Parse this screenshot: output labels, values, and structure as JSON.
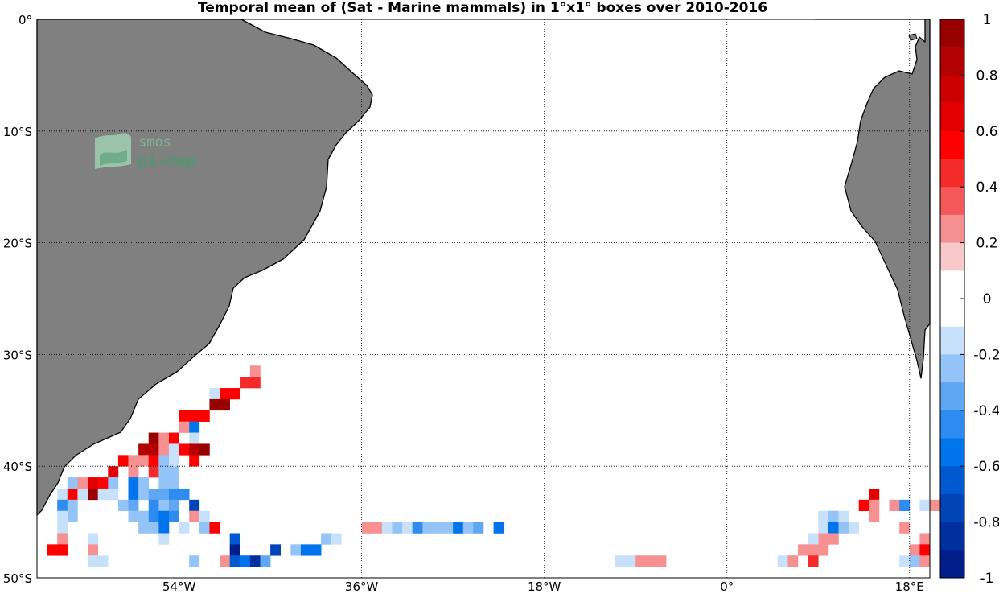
{
  "chart_data": {
    "type": "heatmap",
    "title": "Temporal mean of (Sat - Marine mammals) in 1°x1° boxes over 2010-2016",
    "x_range_deg": [
      -68,
      20
    ],
    "y_range_deg": [
      -50,
      0
    ],
    "x_ticks": [
      {
        "value": -54,
        "label": "54°W"
      },
      {
        "value": -36,
        "label": "36°W"
      },
      {
        "value": -18,
        "label": "18°W"
      },
      {
        "value": 0,
        "label": "0°"
      },
      {
        "value": 18,
        "label": "18°E"
      }
    ],
    "y_ticks": [
      {
        "value": 0,
        "label": "0°"
      },
      {
        "value": -10,
        "label": "10°S"
      },
      {
        "value": -20,
        "label": "20°S"
      },
      {
        "value": -30,
        "label": "30°S"
      },
      {
        "value": -40,
        "label": "40°S"
      },
      {
        "value": -50,
        "label": "50°S"
      }
    ],
    "grid": "dotted",
    "colorbar": {
      "range": [
        -1,
        1
      ],
      "step": 0.1,
      "ticks": [
        "1",
        "0.8",
        "0.6",
        "0.4",
        "0.2",
        "0",
        "-0.2",
        "-0.4",
        "-0.6",
        "-0.8",
        "-1"
      ],
      "zero_band": 0.1
    },
    "cells": [
      {
        "lon": -47,
        "lat": -32,
        "v": 0.3
      },
      {
        "lon": -48,
        "lat": -33,
        "v": 0.4
      },
      {
        "lon": -47,
        "lat": -33,
        "v": 0.4
      },
      {
        "lon": -51,
        "lat": -34,
        "v": -0.15
      },
      {
        "lon": -50,
        "lat": -34,
        "v": 0.6
      },
      {
        "lon": -49,
        "lat": -34,
        "v": 0.6
      },
      {
        "lon": -51,
        "lat": -35,
        "v": 0.95
      },
      {
        "lon": -50,
        "lat": -35,
        "v": 0.95
      },
      {
        "lon": -54,
        "lat": -36,
        "v": 0.6
      },
      {
        "lon": -53,
        "lat": -36,
        "v": 0.6
      },
      {
        "lon": -52,
        "lat": -36,
        "v": 0.6
      },
      {
        "lon": -54,
        "lat": -37,
        "v": 0.3
      },
      {
        "lon": -53,
        "lat": -37,
        "v": -0.6
      },
      {
        "lon": -57,
        "lat": -38,
        "v": 0.95
      },
      {
        "lon": -56,
        "lat": -38,
        "v": 0.3
      },
      {
        "lon": -55,
        "lat": -38,
        "v": 0.5
      },
      {
        "lon": -53,
        "lat": -38,
        "v": -0.15
      },
      {
        "lon": -58,
        "lat": -39,
        "v": 0.8
      },
      {
        "lon": -57,
        "lat": -39,
        "v": 0.85
      },
      {
        "lon": -56,
        "lat": -39,
        "v": 0.3
      },
      {
        "lon": -55,
        "lat": -39,
        "v": -0.15
      },
      {
        "lon": -54,
        "lat": -39,
        "v": 0.5
      },
      {
        "lon": -53,
        "lat": -39,
        "v": 0.85
      },
      {
        "lon": -52,
        "lat": -39,
        "v": 0.95
      },
      {
        "lon": -60,
        "lat": -40,
        "v": 0.55
      },
      {
        "lon": -59,
        "lat": -40,
        "v": 0.3
      },
      {
        "lon": -58,
        "lat": -40,
        "v": 0.3
      },
      {
        "lon": -57,
        "lat": -40,
        "v": 0.5
      },
      {
        "lon": -56,
        "lat": -40,
        "v": -0.25
      },
      {
        "lon": -55,
        "lat": -40,
        "v": -0.15
      },
      {
        "lon": -53,
        "lat": -40,
        "v": 0.6
      },
      {
        "lon": -61,
        "lat": -41,
        "v": 0.7
      },
      {
        "lon": -59,
        "lat": -41,
        "v": 0.3
      },
      {
        "lon": -57,
        "lat": -41,
        "v": 0.4
      },
      {
        "lon": -56,
        "lat": -41,
        "v": -0.25
      },
      {
        "lon": -55,
        "lat": -41,
        "v": -0.25
      },
      {
        "lon": -65,
        "lat": -42,
        "v": -0.25
      },
      {
        "lon": -64,
        "lat": -42,
        "v": 0.2
      },
      {
        "lon": -63,
        "lat": -42,
        "v": 0.7
      },
      {
        "lon": -62,
        "lat": -42,
        "v": 0.6
      },
      {
        "lon": -61,
        "lat": -42,
        "v": -0.25
      },
      {
        "lon": -59,
        "lat": -42,
        "v": -0.6
      },
      {
        "lon": -58,
        "lat": -42,
        "v": -0.25
      },
      {
        "lon": -56,
        "lat": -42,
        "v": -0.25
      },
      {
        "lon": -55,
        "lat": -42,
        "v": -0.25
      },
      {
        "lon": -66,
        "lat": -43,
        "v": -0.15
      },
      {
        "lon": -65,
        "lat": -43,
        "v": 0.5
      },
      {
        "lon": -64,
        "lat": -43,
        "v": -0.15
      },
      {
        "lon": -63,
        "lat": -43,
        "v": 0.9
      },
      {
        "lon": -62,
        "lat": -43,
        "v": -0.15
      },
      {
        "lon": -61,
        "lat": -43,
        "v": -0.15
      },
      {
        "lon": -59,
        "lat": -43,
        "v": -0.5
      },
      {
        "lon": -58,
        "lat": -43,
        "v": -0.25
      },
      {
        "lon": -57,
        "lat": -43,
        "v": -0.35
      },
      {
        "lon": -56,
        "lat": -43,
        "v": -0.35
      },
      {
        "lon": -55,
        "lat": -43,
        "v": -0.45
      },
      {
        "lon": -54,
        "lat": -43,
        "v": -0.45
      },
      {
        "lon": -66,
        "lat": -44,
        "v": -0.45
      },
      {
        "lon": -65,
        "lat": -44,
        "v": -0.25
      },
      {
        "lon": -60,
        "lat": -44,
        "v": -0.25
      },
      {
        "lon": -59,
        "lat": -44,
        "v": -0.35
      },
      {
        "lon": -57,
        "lat": -44,
        "v": -0.45
      },
      {
        "lon": -56,
        "lat": -44,
        "v": -0.25
      },
      {
        "lon": -55,
        "lat": -44,
        "v": -0.35
      },
      {
        "lon": -53,
        "lat": -44,
        "v": -0.75
      },
      {
        "lon": -66,
        "lat": -45,
        "v": -0.15
      },
      {
        "lon": -65,
        "lat": -45,
        "v": -0.25
      },
      {
        "lon": -59,
        "lat": -45,
        "v": -0.25
      },
      {
        "lon": -58,
        "lat": -45,
        "v": -0.25
      },
      {
        "lon": -57,
        "lat": -45,
        "v": -0.45
      },
      {
        "lon": -56,
        "lat": -45,
        "v": -0.55
      },
      {
        "lon": -55,
        "lat": -45,
        "v": -0.45
      },
      {
        "lon": -53,
        "lat": -45,
        "v": 0.3
      },
      {
        "lon": -52,
        "lat": -45,
        "v": -0.15
      },
      {
        "lon": -66,
        "lat": -46,
        "v": -0.15
      },
      {
        "lon": -58,
        "lat": -46,
        "v": -0.25
      },
      {
        "lon": -57,
        "lat": -46,
        "v": -0.25
      },
      {
        "lon": -56,
        "lat": -46,
        "v": -0.55
      },
      {
        "lon": -54,
        "lat": -46,
        "v": -0.15
      },
      {
        "lon": -52,
        "lat": -46,
        "v": -0.25
      },
      {
        "lon": -51,
        "lat": -46,
        "v": 0.6
      },
      {
        "lon": -36,
        "lat": -46,
        "v": 0.3
      },
      {
        "lon": -35,
        "lat": -46,
        "v": 0.3
      },
      {
        "lon": -34,
        "lat": -46,
        "v": -0.15
      },
      {
        "lon": -33,
        "lat": -46,
        "v": -0.3
      },
      {
        "lon": -32,
        "lat": -46,
        "v": -0.15
      },
      {
        "lon": -31,
        "lat": -46,
        "v": -0.45
      },
      {
        "lon": -30,
        "lat": -46,
        "v": -0.25
      },
      {
        "lon": -29,
        "lat": -46,
        "v": -0.25
      },
      {
        "lon": -28,
        "lat": -46,
        "v": -0.25
      },
      {
        "lon": -27,
        "lat": -46,
        "v": -0.5
      },
      {
        "lon": -26,
        "lat": -46,
        "v": -0.25
      },
      {
        "lon": -25,
        "lat": -46,
        "v": -0.35
      },
      {
        "lon": -23,
        "lat": -46,
        "v": -0.5
      },
      {
        "lon": -66,
        "lat": -47,
        "v": 0.2
      },
      {
        "lon": -63,
        "lat": -47,
        "v": -0.15
      },
      {
        "lon": -56,
        "lat": -47,
        "v": -0.15
      },
      {
        "lon": -49,
        "lat": -47,
        "v": -0.7
      },
      {
        "lon": -40,
        "lat": -47,
        "v": -0.3
      },
      {
        "lon": -39,
        "lat": -47,
        "v": -0.15
      },
      {
        "lon": -67,
        "lat": -48,
        "v": 0.5
      },
      {
        "lon": -66,
        "lat": -48,
        "v": 0.55
      },
      {
        "lon": -63,
        "lat": -48,
        "v": 0.3
      },
      {
        "lon": -49,
        "lat": -48,
        "v": -0.9
      },
      {
        "lon": -45,
        "lat": -48,
        "v": -0.75
      },
      {
        "lon": -43,
        "lat": -48,
        "v": -0.3
      },
      {
        "lon": -42,
        "lat": -48,
        "v": -0.55
      },
      {
        "lon": -41,
        "lat": -48,
        "v": -0.55
      },
      {
        "lon": -63,
        "lat": -49,
        "v": -0.15
      },
      {
        "lon": -62,
        "lat": -49,
        "v": -0.15
      },
      {
        "lon": -53,
        "lat": -49,
        "v": -0.25
      },
      {
        "lon": -50,
        "lat": -49,
        "v": 0.3
      },
      {
        "lon": -49,
        "lat": -49,
        "v": -0.7
      },
      {
        "lon": -48,
        "lat": -49,
        "v": -0.55
      },
      {
        "lon": -47,
        "lat": -49,
        "v": -0.8
      },
      {
        "lon": -46,
        "lat": -49,
        "v": -0.35
      },
      {
        "lon": -11,
        "lat": -49,
        "v": -0.15
      },
      {
        "lon": -10,
        "lat": -49,
        "v": -0.15
      },
      {
        "lon": -9,
        "lat": -49,
        "v": 0.2
      },
      {
        "lon": -8,
        "lat": -49,
        "v": 0.2
      },
      {
        "lon": -7,
        "lat": -49,
        "v": 0.2
      },
      {
        "lon": 14,
        "lat": -43,
        "v": 0.7
      },
      {
        "lon": 13,
        "lat": -44,
        "v": 0.6
      },
      {
        "lon": 14,
        "lat": -44,
        "v": 0.3
      },
      {
        "lon": 16,
        "lat": -44,
        "v": 0.2
      },
      {
        "lon": 17,
        "lat": -44,
        "v": -0.45
      },
      {
        "lon": 19,
        "lat": -44,
        "v": -0.15
      },
      {
        "lon": 20,
        "lat": -44,
        "v": 0.2
      },
      {
        "lon": 9,
        "lat": -45,
        "v": -0.15
      },
      {
        "lon": 10,
        "lat": -45,
        "v": -0.25
      },
      {
        "lon": 11,
        "lat": -45,
        "v": -0.15
      },
      {
        "lon": 14,
        "lat": -45,
        "v": 0.2
      },
      {
        "lon": 9,
        "lat": -46,
        "v": -0.15
      },
      {
        "lon": 10,
        "lat": -46,
        "v": -0.5
      },
      {
        "lon": 11,
        "lat": -46,
        "v": -0.25
      },
      {
        "lon": 12,
        "lat": -46,
        "v": -0.15
      },
      {
        "lon": 17,
        "lat": -46,
        "v": 0.2
      },
      {
        "lon": 9,
        "lat": -47,
        "v": 0.3
      },
      {
        "lon": 10,
        "lat": -47,
        "v": 0.2
      },
      {
        "lon": 8,
        "lat": -47,
        "v": -0.15
      },
      {
        "lon": 19,
        "lat": -47,
        "v": 0.2
      },
      {
        "lon": 8,
        "lat": -48,
        "v": 0.2
      },
      {
        "lon": 7,
        "lat": -48,
        "v": 0.2
      },
      {
        "lon": 9,
        "lat": -48,
        "v": 0.3
      },
      {
        "lon": 18,
        "lat": -48,
        "v": 0.3
      },
      {
        "lon": 19,
        "lat": -48,
        "v": 0.5
      },
      {
        "lon": 5,
        "lat": -49,
        "v": -0.15
      },
      {
        "lon": 6,
        "lat": -49,
        "v": 0.2
      },
      {
        "lon": 8,
        "lat": -49,
        "v": 0.4
      },
      {
        "lon": 17,
        "lat": -49,
        "v": -0.15
      },
      {
        "lon": 18,
        "lat": -49,
        "v": -0.25
      },
      {
        "lon": 19,
        "lat": -49,
        "v": 0.2
      }
    ]
  },
  "colors": {
    "land": "#808080",
    "scale_positive": [
      "#f9c8c8",
      "#f79090",
      "#f55858",
      "#f52a2a",
      "#ff0000",
      "#e40000",
      "#cc0000",
      "#b30000",
      "#990000",
      "#800000"
    ],
    "scale_negative": [
      "#c8e1fb",
      "#93c3f7",
      "#5fa6f3",
      "#2e8bf0",
      "#0074ec",
      "#0059d0",
      "#0044b8",
      "#002fa0",
      "#001d89",
      "#000a75"
    ]
  },
  "logo": {
    "line1": "smos",
    "line2": "pi-mep"
  }
}
